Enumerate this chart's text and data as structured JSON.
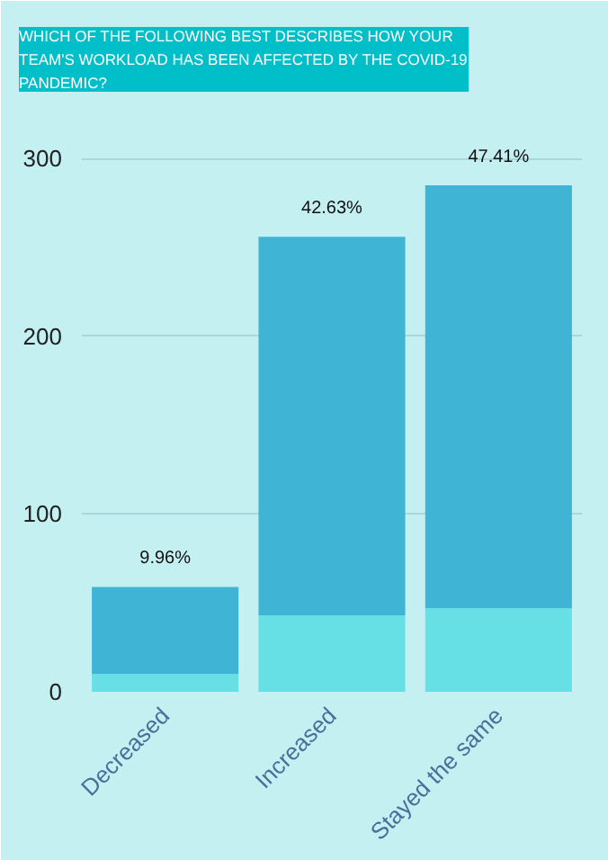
{
  "chart_data": {
    "type": "bar",
    "title": "WHICH OF THE FOLLOWING BEST DESCRIBES HOW YOUR TEAM'S WORKLOAD HAS BEEN AFFECTED BY THE COVID-19 PANDEMIC?",
    "categories": [
      "Decreased",
      "Increased",
      "Stayed the same"
    ],
    "stacked": true,
    "series": [
      {
        "color": "#66e0e4",
        "values": [
          10,
          43,
          47
        ]
      },
      {
        "color": "#40b4d4",
        "values": [
          49,
          213,
          238
        ]
      }
    ],
    "annotations": [
      {
        "text": "9.96%",
        "x": "Decreased",
        "y": 59
      },
      {
        "text": "42.63%",
        "x": "Increased",
        "y": 256
      },
      {
        "text": "47.41%",
        "x": "Stayed the same",
        "y": 285
      }
    ],
    "ylim": [
      0,
      325
    ],
    "yticks": [
      0,
      100,
      200,
      300
    ],
    "grid": "y"
  }
}
